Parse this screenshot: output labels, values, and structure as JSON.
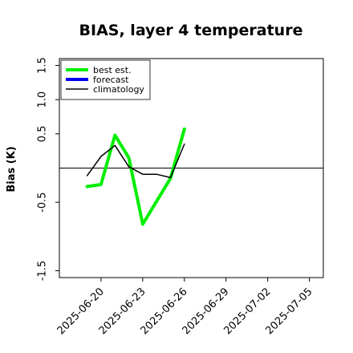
{
  "chart_data": {
    "type": "line",
    "title": "BIAS, layer 4 temperature",
    "xlabel": "",
    "ylabel": "Bias (K)",
    "ylim": [
      -1.6,
      1.6
    ],
    "yticks": [
      -1.5,
      -0.5,
      0.5,
      1.0,
      1.5
    ],
    "ytick_labels": [
      "-1.5",
      "-0.5",
      "0.5",
      "1.0",
      "1.5"
    ],
    "xlim": [
      "2025-06-17",
      "2025-07-06"
    ],
    "xticks": [
      "2025-06-20",
      "2025-06-23",
      "2025-06-26",
      "2025-06-29",
      "2025-07-02",
      "2025-07-05"
    ],
    "highlighted_xtick": "2025-06-26",
    "highlight_color": "#228b22",
    "zero_line": 0,
    "grid": false,
    "legend_position": "top-left",
    "series": [
      {
        "name": "best est.",
        "color": "#00ee00",
        "x": [
          "2025-06-19",
          "2025-06-20",
          "2025-06-21",
          "2025-06-22",
          "2025-06-23",
          "2025-06-25",
          "2025-06-26"
        ],
        "y": [
          -0.27,
          -0.24,
          0.48,
          0.15,
          -0.82,
          -0.15,
          0.57
        ]
      },
      {
        "name": "forecast",
        "color": "#0000ee",
        "x": [],
        "y": []
      },
      {
        "name": "climatology",
        "color": "#000000",
        "x": [
          "2025-06-19",
          "2025-06-20",
          "2025-06-21",
          "2025-06-22",
          "2025-06-23",
          "2025-06-24",
          "2025-06-25",
          "2025-06-26"
        ],
        "y": [
          -0.11,
          0.17,
          0.33,
          0.02,
          -0.09,
          -0.09,
          -0.14,
          0.35
        ]
      }
    ]
  }
}
